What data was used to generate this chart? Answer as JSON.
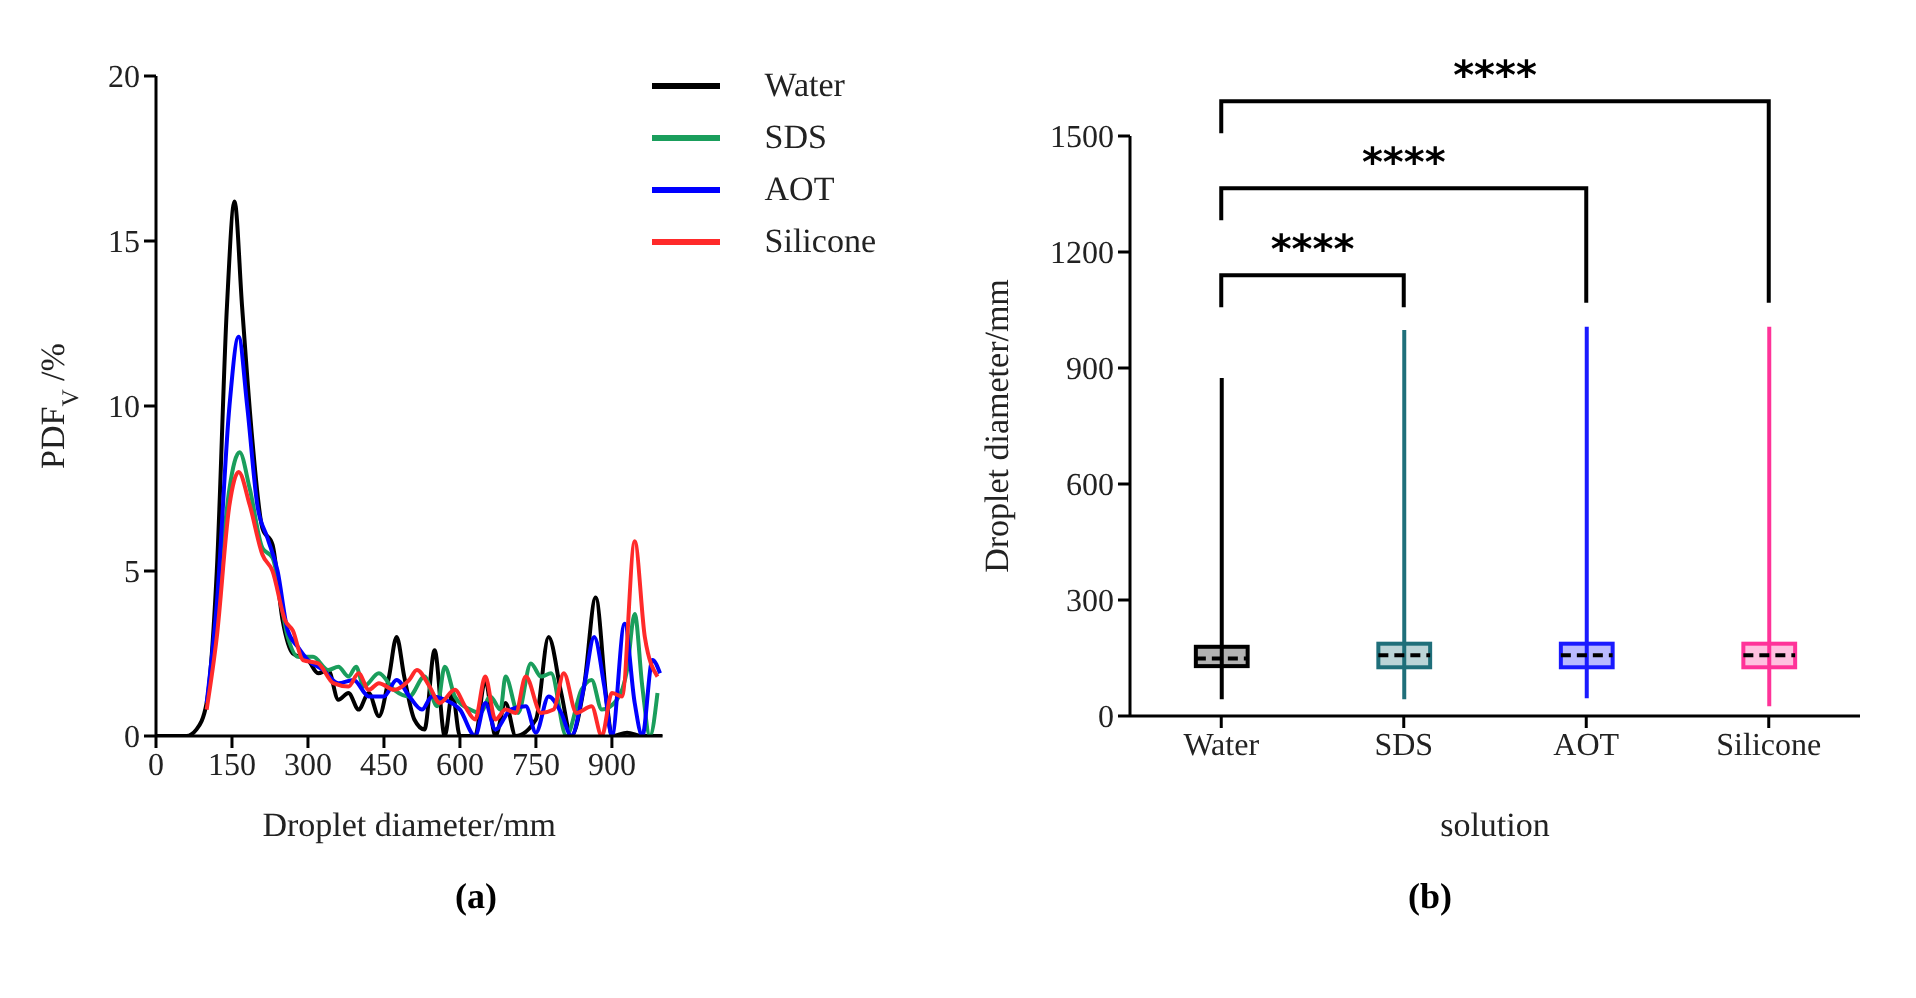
{
  "chart_data": [
    {
      "type": "line",
      "title": "(a)",
      "xlabel": "Droplet diameter/mm",
      "ylabel": "PDF$_{V}$/%",
      "xlim": [
        0,
        1000
      ],
      "xticks": [
        0,
        150,
        300,
        450,
        600,
        750,
        900
      ],
      "ylim": [
        0,
        20
      ],
      "yticks": [
        0,
        5,
        10,
        15,
        20
      ],
      "legend": "top right",
      "series": [
        {
          "name": "Water",
          "color": "#000000",
          "x": [
            0,
            60,
            80,
            100,
            120,
            140,
            155,
            170,
            190,
            210,
            230,
            250,
            270,
            300,
            320,
            340,
            360,
            380,
            400,
            420,
            440,
            460,
            475,
            490,
            510,
            530,
            550,
            570,
            585,
            600,
            630,
            650,
            670,
            690,
            710,
            750,
            775,
            800,
            820,
            845,
            868,
            890,
            900,
            930,
            960,
            1000
          ],
          "values": [
            0,
            0,
            0.2,
            1,
            5,
            13,
            16.2,
            13,
            9,
            6.3,
            5.8,
            3.5,
            2.5,
            2.3,
            1.9,
            2.0,
            1.1,
            1.3,
            0.8,
            1.3,
            0.6,
            1.8,
            3.0,
            1.8,
            0.5,
            0.2,
            2.6,
            0,
            1.3,
            0,
            0,
            1.7,
            0,
            1.0,
            0,
            0.5,
            3.0,
            1.3,
            0,
            1.5,
            4.2,
            1,
            0,
            0.1,
            0,
            0
          ]
        },
        {
          "name": "SDS",
          "color": "#1a9e5c",
          "x": [
            120,
            145,
            165,
            185,
            210,
            230,
            260,
            280,
            310,
            340,
            360,
            380,
            395,
            410,
            440,
            470,
            500,
            530,
            555,
            570,
            590,
            620,
            640,
            660,
            680,
            690,
            715,
            740,
            760,
            780,
            810,
            840,
            860,
            880,
            910,
            930,
            945,
            960,
            975,
            990
          ],
          "values": [
            3.5,
            7.5,
            8.6,
            7.5,
            5.7,
            5.4,
            3.0,
            2.4,
            2.4,
            2.0,
            2.1,
            1.8,
            2.1,
            1.5,
            1.9,
            1.4,
            1.2,
            1.8,
            0.9,
            2.1,
            1.2,
            0.8,
            0.7,
            1.2,
            0.8,
            1.8,
            0.7,
            2.2,
            1.8,
            1.9,
            0,
            1.4,
            1.7,
            0.8,
            1.1,
            2.0,
            3.7,
            1.5,
            0,
            1.3
          ]
        },
        {
          "name": "AOT",
          "color": "#0000ff",
          "x": [
            100,
            120,
            145,
            163,
            180,
            200,
            220,
            240,
            260,
            280,
            300,
            330,
            360,
            390,
            420,
            450,
            475,
            500,
            525,
            545,
            570,
            600,
            630,
            650,
            670,
            700,
            730,
            750,
            775,
            800,
            820,
            845,
            865,
            885,
            900,
            925,
            945,
            960,
            980,
            995
          ],
          "values": [
            1,
            4,
            10,
            12.1,
            10,
            7,
            6,
            5,
            3.2,
            2.7,
            2.3,
            2.0,
            1.6,
            1.7,
            1.2,
            1.2,
            1.7,
            1.2,
            0.8,
            1.2,
            1.1,
            0.8,
            0,
            1.0,
            0.2,
            0.8,
            0.9,
            0.1,
            1.2,
            0.7,
            0,
            1.5,
            3.0,
            1.5,
            0,
            3.4,
            1.0,
            0,
            2.3,
            1.9
          ]
        },
        {
          "name": "Silicone",
          "color": "#ff2a2a",
          "x": [
            100,
            120,
            145,
            163,
            185,
            210,
            230,
            255,
            270,
            290,
            320,
            350,
            380,
            400,
            420,
            440,
            470,
            500,
            515,
            540,
            560,
            590,
            610,
            630,
            650,
            670,
            690,
            710,
            730,
            760,
            785,
            805,
            830,
            860,
            880,
            900,
            920,
            945,
            965,
            990
          ],
          "values": [
            0.8,
            3,
            7,
            8.0,
            7,
            5.5,
            5.0,
            3.5,
            3.2,
            2.3,
            2.2,
            1.6,
            1.5,
            1.9,
            1.4,
            1.6,
            1.4,
            1.7,
            2.0,
            1.5,
            1.0,
            1.4,
            0.9,
            0.5,
            1.8,
            0.5,
            0.8,
            0.7,
            1.8,
            0.7,
            0.8,
            1.9,
            0.7,
            0.9,
            0,
            1.3,
            1.2,
            5.9,
            3.0,
            1.8
          ]
        }
      ]
    },
    {
      "type": "box",
      "title": "(b)",
      "xlabel": "solution",
      "ylabel": "Droplet diameter/mm",
      "categories": [
        "Water",
        "SDS",
        "AOT",
        "Silicone"
      ],
      "colors": [
        "#000000",
        "#1f6f7a",
        "#1a1aff",
        "#ff3399"
      ],
      "ylim": [
        0,
        1500
      ],
      "yticks": [
        0,
        300,
        600,
        900,
        1200,
        1500
      ],
      "boxes": [
        {
          "low": 43,
          "q1": 129,
          "median": 149,
          "q3": 179,
          "high": 874
        },
        {
          "low": 43,
          "q1": 126,
          "median": 157,
          "q3": 187,
          "high": 998
        },
        {
          "low": 46,
          "q1": 126,
          "median": 157,
          "q3": 187,
          "high": 1007
        },
        {
          "low": 25,
          "q1": 126,
          "median": 157,
          "q3": 187,
          "high": 1007
        }
      ],
      "annotations": [
        "****",
        "****",
        "****"
      ]
    }
  ]
}
